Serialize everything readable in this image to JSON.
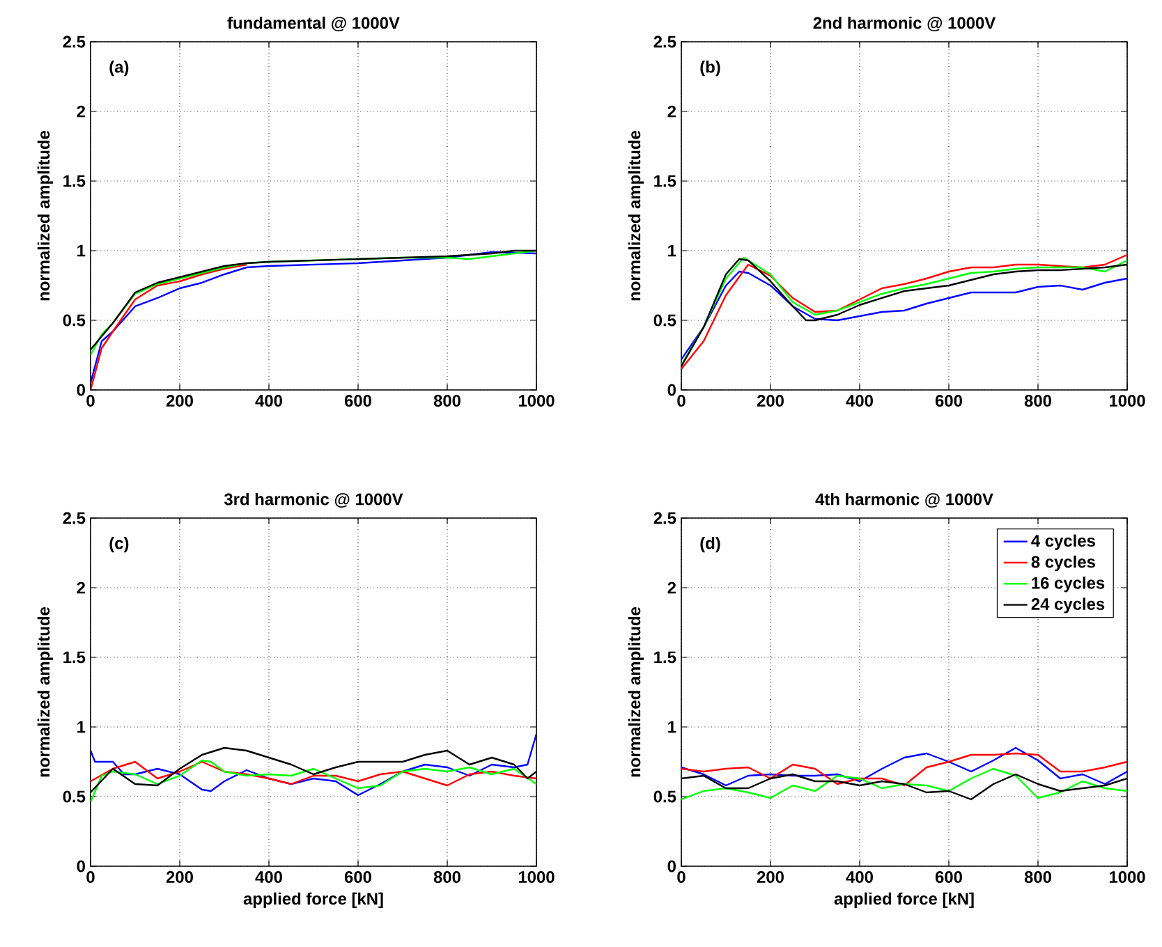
{
  "chart_data": [
    {
      "type": "line",
      "title": "fundamental @ 1000V",
      "ylabel": "normalized amplitude",
      "annotations": [
        "(a)"
      ],
      "xlim": [
        0,
        1000
      ],
      "ylim": [
        0,
        2.5
      ],
      "xticks": [
        0,
        200,
        400,
        600,
        800,
        1000
      ],
      "yticks": [
        0,
        0.5,
        1,
        1.5,
        2,
        2.5
      ],
      "grid": true,
      "legend": false,
      "series": [
        {
          "color": "#0000ff",
          "x": [
            0,
            25,
            50,
            100,
            150,
            200,
            250,
            300,
            350,
            400,
            500,
            600,
            700,
            800,
            900,
            1000
          ],
          "values": [
            0.05,
            0.35,
            0.42,
            0.6,
            0.66,
            0.73,
            0.77,
            0.83,
            0.88,
            0.89,
            0.9,
            0.91,
            0.93,
            0.95,
            0.99,
            0.98
          ]
        },
        {
          "color": "#ff0000",
          "x": [
            0,
            25,
            50,
            100,
            150,
            200,
            250,
            300,
            350
          ],
          "values": [
            0.0,
            0.3,
            0.42,
            0.65,
            0.75,
            0.78,
            0.83,
            0.87,
            0.9
          ]
        },
        {
          "color": "#00ff00",
          "x": [
            0,
            25,
            50,
            100,
            150,
            200,
            250,
            300,
            350,
            400,
            500,
            600,
            700,
            800,
            850,
            900,
            1000
          ],
          "values": [
            0.25,
            0.4,
            0.48,
            0.69,
            0.76,
            0.8,
            0.84,
            0.88,
            0.91,
            0.92,
            0.93,
            0.94,
            0.95,
            0.95,
            0.94,
            0.96,
            1.0
          ]
        },
        {
          "color": "#000000",
          "x": [
            0,
            50,
            100,
            150,
            200,
            250,
            300,
            350,
            400,
            500,
            600,
            700,
            800,
            900,
            950,
            1000
          ],
          "values": [
            0.29,
            0.48,
            0.7,
            0.77,
            0.81,
            0.85,
            0.89,
            0.91,
            0.92,
            0.93,
            0.94,
            0.95,
            0.96,
            0.98,
            1.0,
            1.0
          ]
        }
      ]
    },
    {
      "type": "line",
      "title": "2nd harmonic @ 1000V",
      "ylabel": "normalized amplitude",
      "annotations": [
        "(b)"
      ],
      "xlim": [
        0,
        1000
      ],
      "ylim": [
        0,
        2.5
      ],
      "xticks": [
        0,
        200,
        400,
        600,
        800,
        1000
      ],
      "yticks": [
        0,
        0.5,
        1,
        1.5,
        2,
        2.5
      ],
      "grid": true,
      "legend": false,
      "series": [
        {
          "color": "#0000ff",
          "x": [
            0,
            50,
            100,
            130,
            150,
            200,
            250,
            300,
            350,
            400,
            450,
            500,
            550,
            600,
            650,
            700,
            750,
            800,
            850,
            900,
            950,
            1000
          ],
          "values": [
            0.22,
            0.45,
            0.75,
            0.85,
            0.84,
            0.75,
            0.6,
            0.51,
            0.5,
            0.53,
            0.56,
            0.57,
            0.62,
            0.66,
            0.7,
            0.7,
            0.7,
            0.74,
            0.75,
            0.72,
            0.77,
            0.8
          ]
        },
        {
          "color": "#ff0000",
          "x": [
            0,
            50,
            100,
            150,
            200,
            250,
            300,
            350,
            400,
            450,
            500,
            550,
            600,
            650,
            700,
            750,
            800,
            850,
            900,
            950,
            1000
          ],
          "values": [
            0.15,
            0.35,
            0.68,
            0.9,
            0.82,
            0.66,
            0.56,
            0.57,
            0.65,
            0.73,
            0.76,
            0.8,
            0.85,
            0.88,
            0.88,
            0.9,
            0.9,
            0.89,
            0.88,
            0.9,
            0.97
          ]
        },
        {
          "color": "#00ff00",
          "x": [
            0,
            50,
            100,
            140,
            200,
            250,
            300,
            350,
            400,
            450,
            500,
            550,
            600,
            650,
            700,
            750,
            800,
            850,
            900,
            950,
            1000
          ],
          "values": [
            0.18,
            0.45,
            0.8,
            0.95,
            0.83,
            0.63,
            0.54,
            0.57,
            0.63,
            0.69,
            0.73,
            0.76,
            0.8,
            0.84,
            0.85,
            0.87,
            0.88,
            0.88,
            0.88,
            0.85,
            0.93
          ]
        },
        {
          "color": "#000000",
          "x": [
            0,
            50,
            100,
            130,
            150,
            200,
            250,
            280,
            300,
            350,
            400,
            450,
            500,
            550,
            600,
            650,
            700,
            750,
            800,
            850,
            900,
            950,
            1000
          ],
          "values": [
            0.17,
            0.45,
            0.83,
            0.94,
            0.93,
            0.78,
            0.6,
            0.5,
            0.5,
            0.54,
            0.61,
            0.66,
            0.71,
            0.73,
            0.75,
            0.79,
            0.83,
            0.85,
            0.86,
            0.86,
            0.87,
            0.88,
            0.9
          ]
        }
      ]
    },
    {
      "type": "line",
      "title": "3rd harmonic @ 1000V",
      "xlabel": "applied force [kN]",
      "ylabel": "normalized amplitude",
      "annotations": [
        "(c)"
      ],
      "xlim": [
        0,
        1000
      ],
      "ylim": [
        0,
        2.5
      ],
      "xticks": [
        0,
        200,
        400,
        600,
        800,
        1000
      ],
      "yticks": [
        0,
        0.5,
        1,
        1.5,
        2,
        2.5
      ],
      "grid": true,
      "legend": false,
      "series": [
        {
          "color": "#0000ff",
          "x": [
            0,
            10,
            50,
            75,
            100,
            150,
            200,
            250,
            270,
            300,
            350,
            400,
            450,
            500,
            550,
            600,
            650,
            700,
            750,
            800,
            850,
            900,
            950,
            980,
            1000
          ],
          "values": [
            0.83,
            0.75,
            0.75,
            0.66,
            0.66,
            0.7,
            0.66,
            0.55,
            0.54,
            0.61,
            0.69,
            0.63,
            0.59,
            0.63,
            0.61,
            0.51,
            0.59,
            0.68,
            0.73,
            0.71,
            0.65,
            0.73,
            0.71,
            0.73,
            0.95
          ]
        },
        {
          "color": "#ff0000",
          "x": [
            0,
            50,
            100,
            150,
            200,
            250,
            300,
            350,
            400,
            450,
            500,
            550,
            600,
            650,
            700,
            750,
            800,
            850,
            900,
            950,
            1000
          ],
          "values": [
            0.61,
            0.7,
            0.75,
            0.63,
            0.68,
            0.75,
            0.68,
            0.66,
            0.63,
            0.59,
            0.65,
            0.65,
            0.61,
            0.66,
            0.68,
            0.63,
            0.58,
            0.66,
            0.68,
            0.65,
            0.63
          ]
        },
        {
          "color": "#00ff00",
          "x": [
            0,
            25,
            50,
            100,
            150,
            200,
            250,
            270,
            300,
            350,
            400,
            450,
            500,
            550,
            600,
            650,
            700,
            750,
            800,
            850,
            900,
            950,
            1000
          ],
          "values": [
            0.46,
            0.65,
            0.68,
            0.66,
            0.59,
            0.65,
            0.76,
            0.75,
            0.68,
            0.65,
            0.66,
            0.65,
            0.7,
            0.63,
            0.56,
            0.58,
            0.68,
            0.7,
            0.68,
            0.71,
            0.66,
            0.7,
            0.59
          ]
        },
        {
          "color": "#000000",
          "x": [
            0,
            50,
            100,
            150,
            200,
            250,
            300,
            350,
            400,
            450,
            500,
            550,
            600,
            650,
            700,
            750,
            800,
            850,
            900,
            950,
            980,
            1000
          ],
          "values": [
            0.53,
            0.7,
            0.59,
            0.58,
            0.7,
            0.8,
            0.85,
            0.83,
            0.78,
            0.73,
            0.66,
            0.71,
            0.75,
            0.75,
            0.75,
            0.8,
            0.83,
            0.73,
            0.78,
            0.73,
            0.63,
            0.68
          ]
        }
      ]
    },
    {
      "type": "line",
      "title": "4th harmonic @ 1000V",
      "xlabel": "applied force [kN]",
      "ylabel": "normalized amplitude",
      "annotations": [
        "(d)"
      ],
      "xlim": [
        0,
        1000
      ],
      "ylim": [
        0,
        2.5
      ],
      "xticks": [
        0,
        200,
        400,
        600,
        800,
        1000
      ],
      "yticks": [
        0,
        0.5,
        1,
        1.5,
        2,
        2.5
      ],
      "grid": true,
      "legend": "top right",
      "series": [
        {
          "name": "4 cycles",
          "color": "#0000ff",
          "x": [
            0,
            50,
            100,
            150,
            200,
            250,
            300,
            350,
            400,
            450,
            500,
            550,
            600,
            650,
            700,
            750,
            800,
            850,
            900,
            950,
            1000
          ],
          "values": [
            0.71,
            0.66,
            0.58,
            0.65,
            0.66,
            0.65,
            0.65,
            0.66,
            0.61,
            0.7,
            0.78,
            0.81,
            0.75,
            0.68,
            0.76,
            0.85,
            0.76,
            0.63,
            0.66,
            0.59,
            0.68
          ]
        },
        {
          "name": "8 cycles",
          "color": "#ff0000",
          "x": [
            0,
            50,
            100,
            150,
            200,
            250,
            300,
            350,
            400,
            450,
            500,
            550,
            600,
            650,
            700,
            750,
            800,
            850,
            900,
            950,
            1000
          ],
          "values": [
            0.7,
            0.68,
            0.7,
            0.71,
            0.63,
            0.73,
            0.7,
            0.59,
            0.63,
            0.63,
            0.58,
            0.71,
            0.75,
            0.8,
            0.8,
            0.81,
            0.8,
            0.68,
            0.68,
            0.71,
            0.75
          ]
        },
        {
          "name": "16 cycles",
          "color": "#00ff00",
          "x": [
            0,
            50,
            100,
            150,
            200,
            250,
            300,
            350,
            400,
            450,
            500,
            550,
            600,
            650,
            700,
            750,
            800,
            850,
            900,
            950,
            1000
          ],
          "values": [
            0.48,
            0.54,
            0.56,
            0.53,
            0.49,
            0.58,
            0.54,
            0.65,
            0.63,
            0.56,
            0.59,
            0.58,
            0.54,
            0.63,
            0.7,
            0.65,
            0.49,
            0.53,
            0.61,
            0.56,
            0.54
          ]
        },
        {
          "name": "24 cycles",
          "color": "#000000",
          "x": [
            0,
            50,
            100,
            150,
            200,
            250,
            300,
            350,
            400,
            450,
            500,
            550,
            600,
            650,
            700,
            750,
            800,
            850,
            900,
            950,
            1000
          ],
          "values": [
            0.63,
            0.65,
            0.56,
            0.56,
            0.63,
            0.66,
            0.61,
            0.61,
            0.58,
            0.61,
            0.59,
            0.53,
            0.54,
            0.48,
            0.59,
            0.66,
            0.59,
            0.54,
            0.56,
            0.58,
            0.63
          ]
        }
      ]
    }
  ]
}
